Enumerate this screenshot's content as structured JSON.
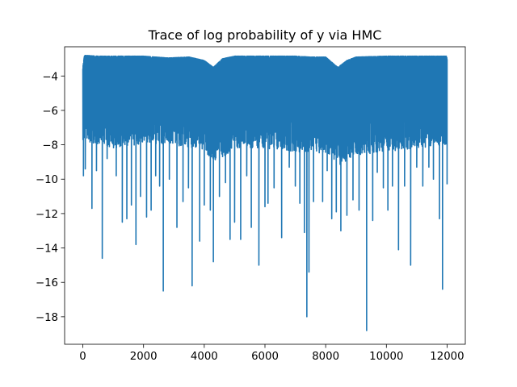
{
  "chart_data": {
    "type": "line",
    "title": "Trace of log probability of y via HMC",
    "xlabel": "",
    "ylabel": "",
    "xlim": [
      -600,
      12600
    ],
    "ylim": [
      -19.6,
      -2.3
    ],
    "x_ticks": [
      0,
      2000,
      4000,
      6000,
      8000,
      10000,
      12000
    ],
    "y_ticks": [
      -18,
      -16,
      -14,
      -12,
      -10,
      -8,
      -6,
      -4
    ],
    "grid": false,
    "legend": "none",
    "color": "#1f77b4",
    "x_range": [
      0,
      12000
    ],
    "num_samples": 12000,
    "upper_envelope": [
      [
        0,
        -3.5
      ],
      [
        50,
        -2.8
      ],
      [
        500,
        -2.85
      ],
      [
        1000,
        -2.85
      ],
      [
        2000,
        -2.85
      ],
      [
        2800,
        -2.95
      ],
      [
        3500,
        -2.9
      ],
      [
        4000,
        -3.1
      ],
      [
        4300,
        -3.5
      ],
      [
        4600,
        -3.0
      ],
      [
        5000,
        -2.85
      ],
      [
        6000,
        -2.85
      ],
      [
        7000,
        -2.85
      ],
      [
        7500,
        -2.9
      ],
      [
        8000,
        -2.9
      ],
      [
        8400,
        -3.5
      ],
      [
        8700,
        -3.1
      ],
      [
        9000,
        -2.9
      ],
      [
        10000,
        -2.85
      ],
      [
        11000,
        -2.85
      ],
      [
        12000,
        -2.85
      ]
    ],
    "dense_lower_envelope": [
      [
        0,
        -6.5
      ],
      [
        500,
        -6.8
      ],
      [
        1000,
        -7.0
      ],
      [
        2000,
        -6.8
      ],
      [
        3000,
        -6.8
      ],
      [
        4000,
        -7.2
      ],
      [
        4400,
        -7.8
      ],
      [
        5000,
        -7.0
      ],
      [
        6000,
        -7.0
      ],
      [
        7000,
        -7.2
      ],
      [
        8000,
        -7.3
      ],
      [
        8500,
        -8.0
      ],
      [
        9000,
        -7.4
      ],
      [
        10000,
        -7.2
      ],
      [
        11000,
        -7.0
      ],
      [
        12000,
        -6.8
      ]
    ],
    "dips": [
      [
        20,
        -9.8
      ],
      [
        80,
        -9.4
      ],
      [
        300,
        -11.7
      ],
      [
        450,
        -9.5
      ],
      [
        640,
        -14.6
      ],
      [
        800,
        -8.8
      ],
      [
        1100,
        -9.8
      ],
      [
        1300,
        -12.5
      ],
      [
        1450,
        -12.3
      ],
      [
        1600,
        -11.5
      ],
      [
        1750,
        -13.8
      ],
      [
        1900,
        -11.0
      ],
      [
        2100,
        -12.2
      ],
      [
        2250,
        -11.8
      ],
      [
        2400,
        -9.8
      ],
      [
        2530,
        -10.4
      ],
      [
        2650,
        -16.5
      ],
      [
        2850,
        -10.0
      ],
      [
        3100,
        -12.8
      ],
      [
        3300,
        -11.3
      ],
      [
        3480,
        -10.5
      ],
      [
        3600,
        -16.2
      ],
      [
        3850,
        -13.6
      ],
      [
        4000,
        -11.5
      ],
      [
        4200,
        -11.8
      ],
      [
        4300,
        -14.8
      ],
      [
        4500,
        -11.0
      ],
      [
        4700,
        -10.2
      ],
      [
        4850,
        -13.5
      ],
      [
        5000,
        -12.5
      ],
      [
        5200,
        -13.5
      ],
      [
        5400,
        -9.8
      ],
      [
        5550,
        -12.8
      ],
      [
        5800,
        -15.0
      ],
      [
        6000,
        -11.6
      ],
      [
        6100,
        -11.4
      ],
      [
        6300,
        -10.5
      ],
      [
        6550,
        -13.4
      ],
      [
        6800,
        -9.3
      ],
      [
        7000,
        -10.4
      ],
      [
        7150,
        -11.4
      ],
      [
        7300,
        -13.1
      ],
      [
        7380,
        -18.0
      ],
      [
        7450,
        -15.4
      ],
      [
        7600,
        -11.3
      ],
      [
        7900,
        -11.3
      ],
      [
        8050,
        -9.5
      ],
      [
        8200,
        -12.3
      ],
      [
        8350,
        -11.9
      ],
      [
        8500,
        -13.0
      ],
      [
        8700,
        -12.1
      ],
      [
        8900,
        -11.2
      ],
      [
        9100,
        -11.8
      ],
      [
        9350,
        -18.8
      ],
      [
        9550,
        -12.4
      ],
      [
        9700,
        -9.6
      ],
      [
        9900,
        -10.5
      ],
      [
        10050,
        -11.8
      ],
      [
        10200,
        -10.4
      ],
      [
        10400,
        -14.1
      ],
      [
        10600,
        -10.4
      ],
      [
        10800,
        -15.0
      ],
      [
        11000,
        -9.3
      ],
      [
        11200,
        -10.4
      ],
      [
        11400,
        -9.3
      ],
      [
        11550,
        -10.0
      ],
      [
        11750,
        -12.3
      ],
      [
        11850,
        -16.4
      ],
      [
        12000,
        -10.3
      ]
    ]
  }
}
